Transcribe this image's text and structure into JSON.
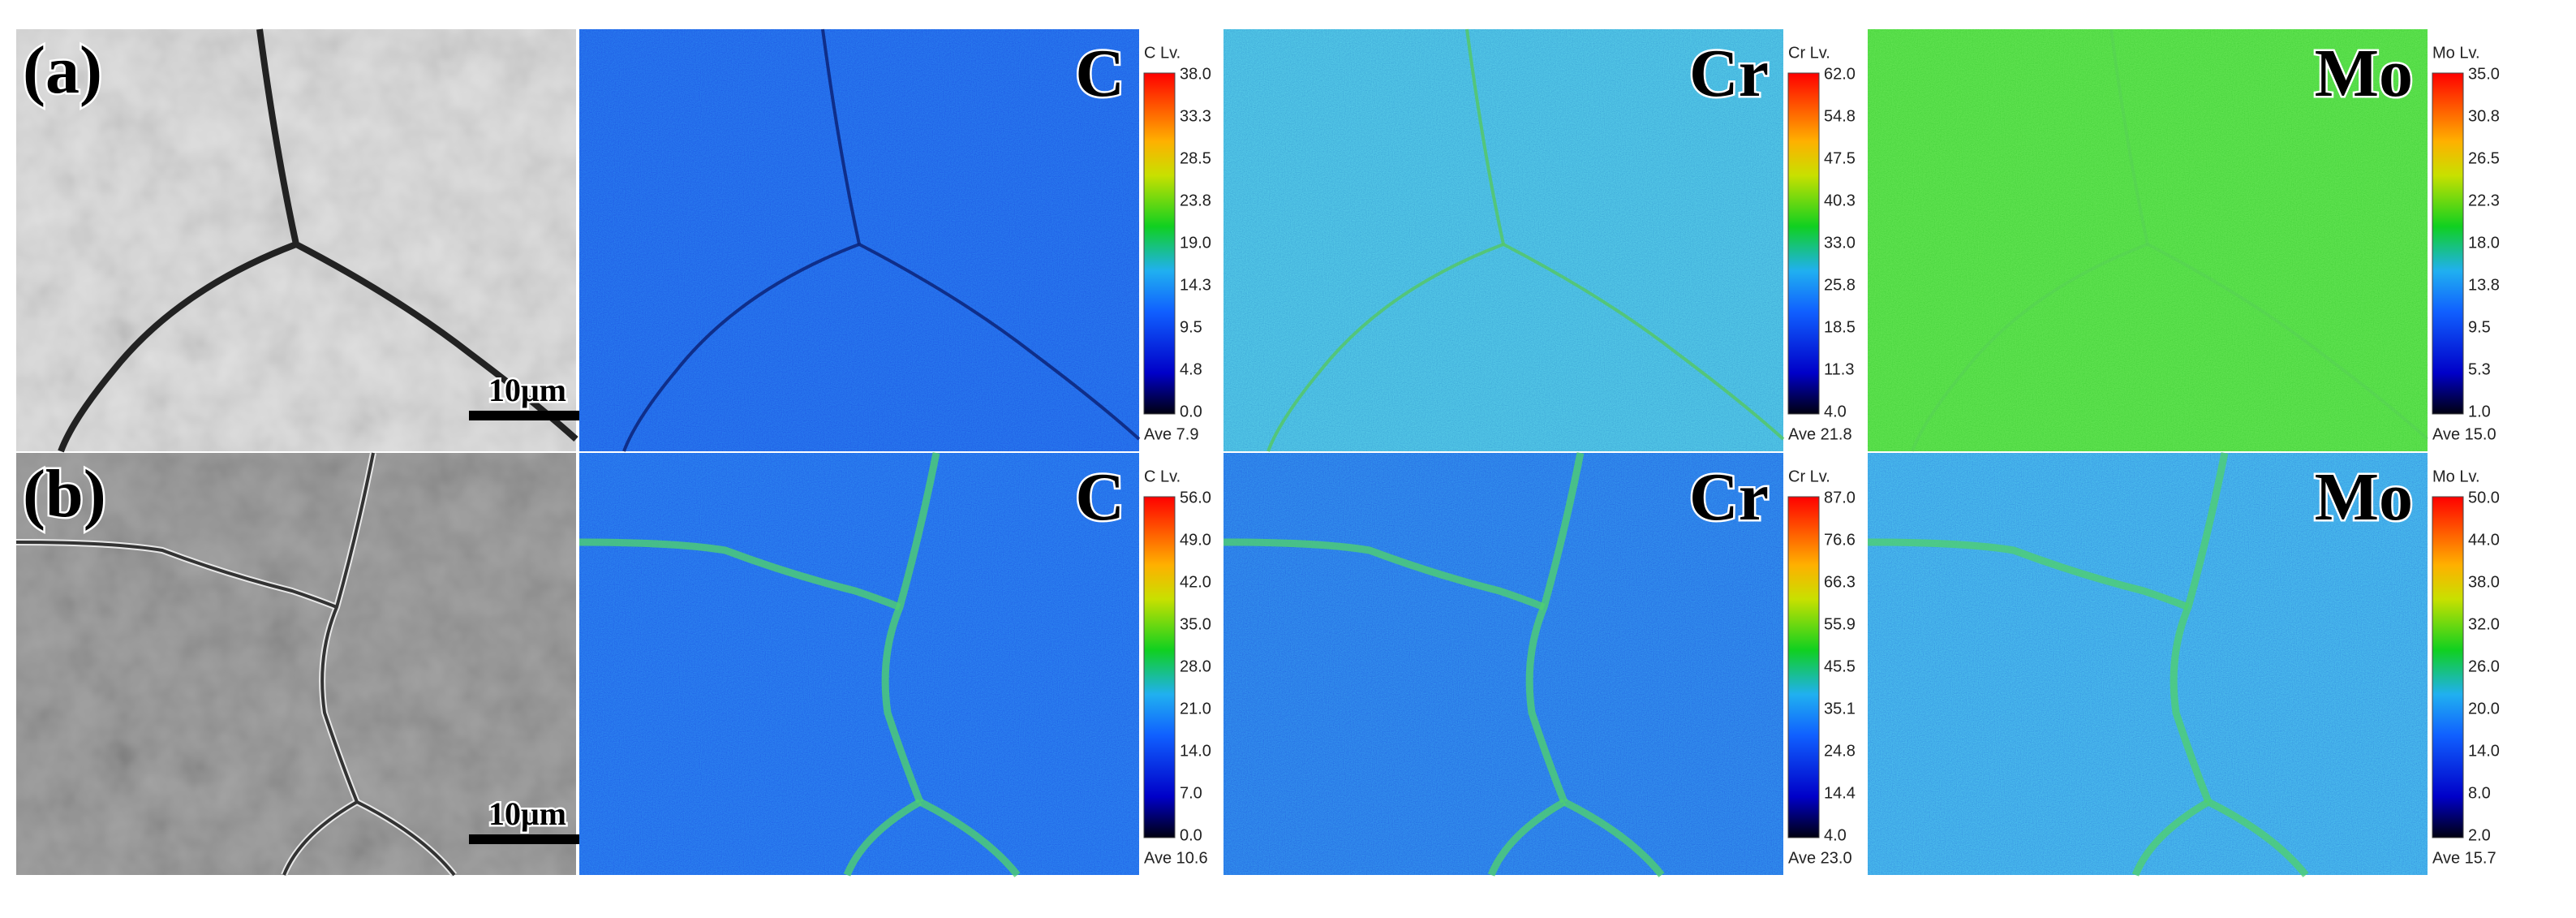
{
  "panels": [
    {
      "label": "(a)",
      "scale_bar": "10μm",
      "maps": [
        {
          "element": "C",
          "colorbar_title": "C Lv.",
          "ticks": [
            "38.0",
            "33.3",
            "28.5",
            "23.8",
            "19.0",
            "14.3",
            "9.5",
            "4.8",
            "0.0"
          ],
          "average": "Ave 7.9"
        },
        {
          "element": "Cr",
          "colorbar_title": "Cr Lv.",
          "ticks": [
            "62.0",
            "54.8",
            "47.5",
            "40.3",
            "33.0",
            "25.8",
            "18.5",
            "11.3",
            "4.0"
          ],
          "average": "Ave 21.8"
        },
        {
          "element": "Mo",
          "colorbar_title": "Mo Lv.",
          "ticks": [
            "35.0",
            "30.8",
            "26.5",
            "22.3",
            "18.0",
            "13.8",
            "9.5",
            "5.3",
            "1.0"
          ],
          "average": "Ave 15.0"
        }
      ]
    },
    {
      "label": "(b)",
      "scale_bar": "10μm",
      "maps": [
        {
          "element": "C",
          "colorbar_title": "C Lv.",
          "ticks": [
            "56.0",
            "49.0",
            "42.0",
            "35.0",
            "28.0",
            "21.0",
            "14.0",
            "7.0",
            "0.0"
          ],
          "average": "Ave 10.6"
        },
        {
          "element": "Cr",
          "colorbar_title": "Cr Lv.",
          "ticks": [
            "87.0",
            "76.6",
            "66.3",
            "55.9",
            "45.5",
            "35.1",
            "24.8",
            "14.4",
            "4.0"
          ],
          "average": "Ave 23.0"
        },
        {
          "element": "Mo",
          "colorbar_title": "Mo Lv.",
          "ticks": [
            "50.0",
            "44.0",
            "38.0",
            "32.0",
            "26.0",
            "20.0",
            "14.0",
            "8.0",
            "2.0"
          ],
          "average": "Ave 15.7"
        }
      ]
    }
  ]
}
